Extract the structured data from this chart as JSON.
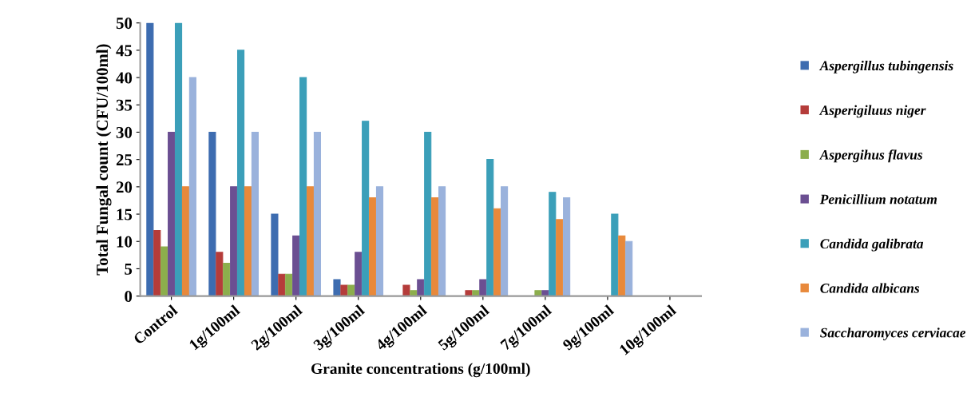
{
  "chart_data": {
    "type": "bar",
    "xlabel": "Granite concentrations (g/100ml)",
    "ylabel": "Total Fungal count (CFU/100ml)",
    "categories": [
      "Control",
      "1g/100ml",
      "2g/100ml",
      "3g/100ml",
      "4g/100ml",
      "5g/100ml",
      "7g/100ml",
      "9g/100ml",
      "10g/100ml"
    ],
    "series": [
      {
        "name": "Aspergillus tubingensis",
        "color": "#3d6cb0",
        "values": [
          50,
          30,
          15,
          3,
          0,
          0,
          0,
          0,
          0
        ]
      },
      {
        "name": "Asperigiluus niger",
        "color": "#b53c3a",
        "values": [
          12,
          8,
          4,
          2,
          2,
          1,
          0,
          0,
          0
        ]
      },
      {
        "name": "Aspergihus flavus",
        "color": "#8cae4c",
        "values": [
          9,
          6,
          4,
          2,
          1,
          1,
          1,
          0,
          0
        ]
      },
      {
        "name": "Penicillium notatum",
        "color": "#6b4f92",
        "values": [
          30,
          20,
          11,
          8,
          3,
          3,
          1,
          0,
          0
        ]
      },
      {
        "name": "Candida galibrata",
        "color": "#3b9fb9",
        "values": [
          50,
          45,
          40,
          32,
          30,
          25,
          19,
          15,
          0
        ]
      },
      {
        "name": "Candida albicans",
        "color": "#e8893b",
        "values": [
          20,
          20,
          20,
          18,
          18,
          16,
          14,
          11,
          0
        ]
      },
      {
        "name": "Saccharomyces cerviacae",
        "color": "#9ab2dc",
        "values": [
          40,
          30,
          30,
          20,
          20,
          20,
          18,
          10,
          0
        ]
      }
    ],
    "ylim": [
      0,
      50
    ],
    "yticks": [
      0,
      5,
      10,
      15,
      20,
      25,
      30,
      35,
      40,
      45,
      50
    ],
    "legend": "right",
    "grid": false
  }
}
